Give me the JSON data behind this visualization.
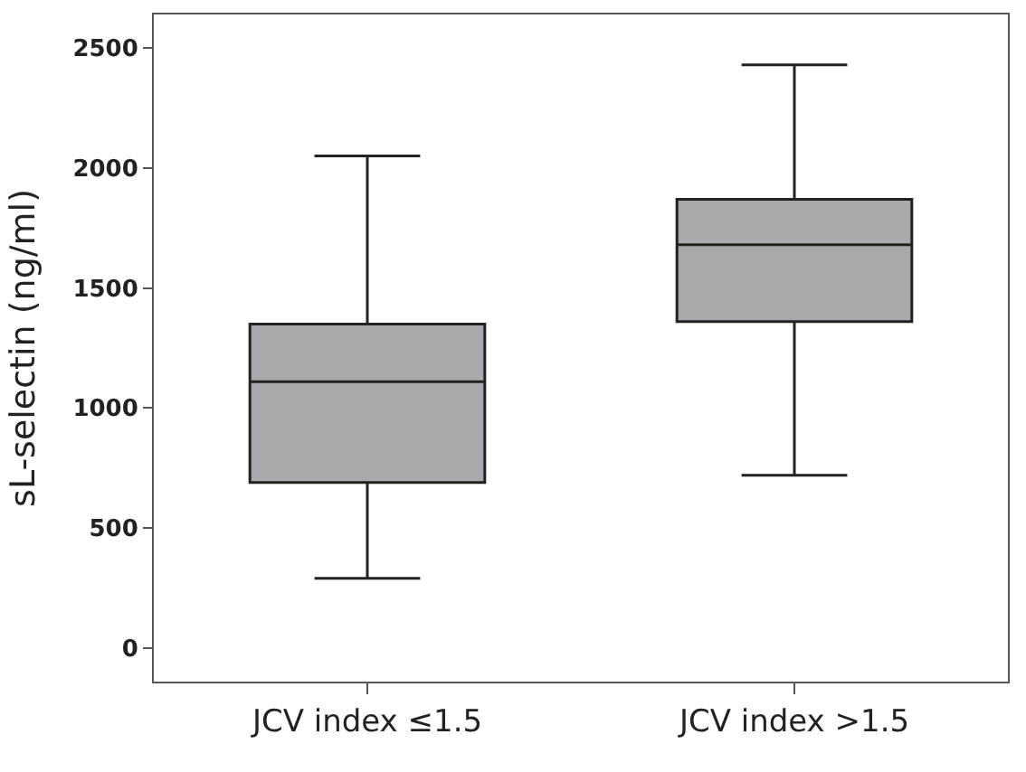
{
  "chart_data": {
    "type": "box",
    "ylabel": "sL-selectin (ng/ml)",
    "categories": [
      "JCV index ≤1.5",
      "JCV index >1.5"
    ],
    "boxes": [
      {
        "low": 290,
        "q1": 690,
        "median": 1110,
        "q3": 1350,
        "high": 2050
      },
      {
        "low": 720,
        "q1": 1360,
        "median": 1680,
        "q3": 1870,
        "high": 2430
      }
    ],
    "color": "#a7a9ac",
    "ylim": [
      -140,
      2640
    ],
    "yticks": [
      0,
      500,
      1000,
      1500,
      2000,
      2500
    ]
  }
}
